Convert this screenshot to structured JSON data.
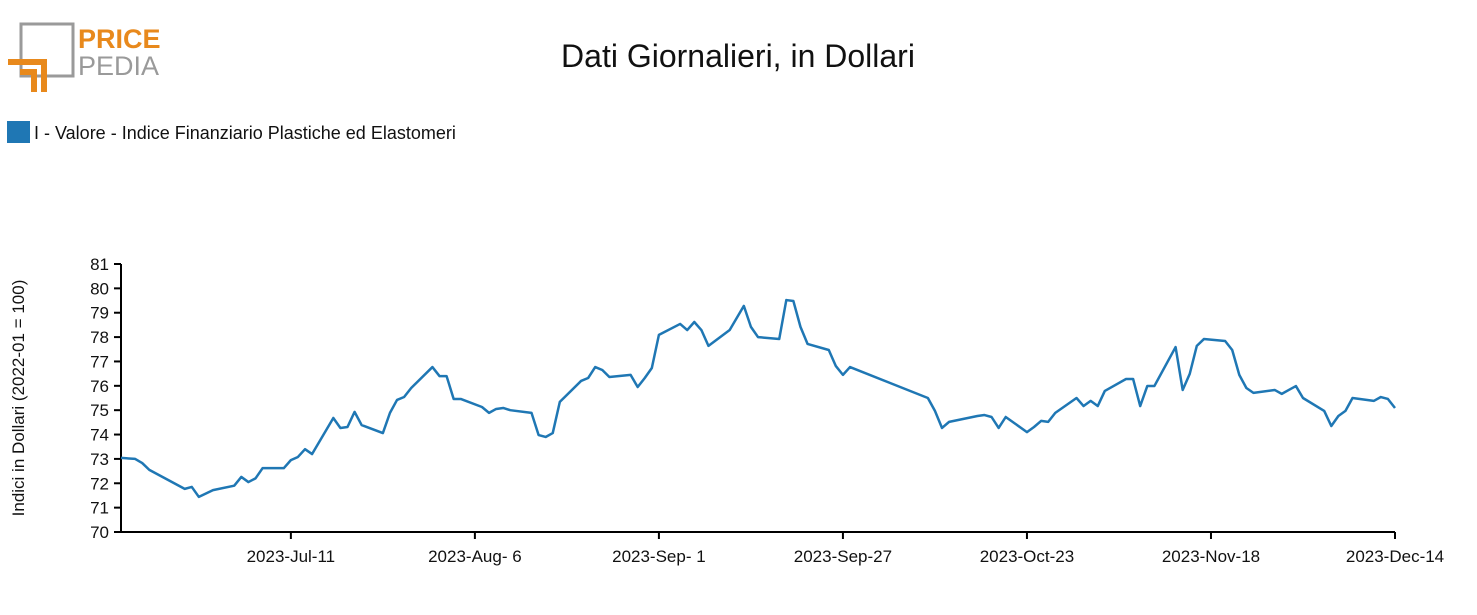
{
  "logo": {
    "top": "PRICE",
    "bottom": "PEDIA"
  },
  "chart_data": {
    "type": "line",
    "title": "Dati Giornalieri, in Dollari",
    "y_label": "Indici in Dollari (2022-01 = 100)",
    "x": [
      "2023-06-17",
      "2023-06-19",
      "2023-06-20",
      "2023-06-21",
      "2023-06-26",
      "2023-06-27",
      "2023-06-28",
      "2023-06-30",
      "2023-07-03",
      "2023-07-04",
      "2023-07-05",
      "2023-07-06",
      "2023-07-07",
      "2023-07-10",
      "2023-07-11",
      "2023-07-12",
      "2023-07-13",
      "2023-07-14",
      "2023-07-17",
      "2023-07-18",
      "2023-07-19",
      "2023-07-20",
      "2023-07-21",
      "2023-07-24",
      "2023-07-25",
      "2023-07-26",
      "2023-07-27",
      "2023-07-28",
      "2023-07-31",
      "2023-08-01",
      "2023-08-02",
      "2023-08-03",
      "2023-08-04",
      "2023-08-07",
      "2023-08-08",
      "2023-08-09",
      "2023-08-10",
      "2023-08-11",
      "2023-08-14",
      "2023-08-15",
      "2023-08-16",
      "2023-08-17",
      "2023-08-18",
      "2023-08-21",
      "2023-08-22",
      "2023-08-23",
      "2023-08-24",
      "2023-08-25",
      "2023-08-28",
      "2023-08-29",
      "2023-08-30",
      "2023-08-31",
      "2023-09-01",
      "2023-09-04",
      "2023-09-05",
      "2023-09-06",
      "2023-09-07",
      "2023-09-08",
      "2023-09-11",
      "2023-09-13",
      "2023-09-14",
      "2023-09-15",
      "2023-09-18",
      "2023-09-19",
      "2023-09-20",
      "2023-09-21",
      "2023-09-22",
      "2023-09-25",
      "2023-09-26",
      "2023-09-27",
      "2023-09-28",
      "2023-10-09",
      "2023-10-10",
      "2023-10-11",
      "2023-10-12",
      "2023-10-16",
      "2023-10-17",
      "2023-10-18",
      "2023-10-19",
      "2023-10-20",
      "2023-10-23",
      "2023-10-24",
      "2023-10-25",
      "2023-10-26",
      "2023-10-27",
      "2023-10-30",
      "2023-10-31",
      "2023-11-01",
      "2023-11-02",
      "2023-11-03",
      "2023-11-06",
      "2023-11-07",
      "2023-11-08",
      "2023-11-09",
      "2023-11-10",
      "2023-11-13",
      "2023-11-14",
      "2023-11-15",
      "2023-11-16",
      "2023-11-17",
      "2023-11-20",
      "2023-11-21",
      "2023-11-22",
      "2023-11-23",
      "2023-11-24",
      "2023-11-27",
      "2023-11-28",
      "2023-11-29",
      "2023-11-30",
      "2023-12-01",
      "2023-12-04",
      "2023-12-05",
      "2023-12-06",
      "2023-12-07",
      "2023-12-08",
      "2023-12-11",
      "2023-12-12",
      "2023-12-13",
      "2023-12-14"
    ],
    "series": [
      {
        "name": "I - Valore - Indice Finanziario Plastiche ed Elastomeri",
        "color": "#1f77b4",
        "values": [
          73.04,
          73.0,
          72.83,
          72.55,
          71.77,
          71.85,
          71.44,
          71.72,
          71.9,
          72.26,
          72.05,
          72.2,
          72.62,
          72.62,
          72.95,
          73.08,
          73.4,
          73.2,
          74.68,
          74.27,
          74.31,
          74.93,
          74.39,
          74.06,
          74.89,
          75.42,
          75.54,
          75.91,
          76.77,
          76.4,
          76.4,
          75.46,
          75.46,
          75.13,
          74.89,
          75.05,
          75.09,
          75.0,
          74.89,
          73.98,
          73.9,
          74.06,
          75.34,
          76.2,
          76.32,
          76.77,
          76.65,
          76.36,
          76.45,
          75.95,
          76.32,
          76.73,
          78.09,
          78.54,
          78.29,
          78.62,
          78.29,
          77.64,
          78.29,
          79.28,
          78.42,
          78.0,
          77.92,
          79.52,
          79.48,
          78.42,
          77.72,
          77.47,
          76.81,
          76.45,
          76.77,
          75.5,
          74.97,
          74.27,
          74.52,
          74.76,
          74.8,
          74.72,
          74.27,
          74.72,
          74.1,
          74.31,
          74.56,
          74.52,
          74.89,
          75.5,
          75.17,
          75.38,
          75.17,
          75.79,
          76.28,
          76.28,
          75.17,
          75.99,
          75.99,
          77.59,
          75.83,
          76.49,
          77.64,
          77.92,
          77.84,
          77.47,
          76.45,
          75.91,
          75.71,
          75.83,
          75.67,
          75.83,
          75.99,
          75.5,
          74.97,
          74.35,
          74.76,
          74.97,
          75.5,
          75.38,
          75.54,
          75.46,
          75.09
        ]
      }
    ],
    "xlim": [
      "2023-06-17",
      "2023-12-14"
    ],
    "xticks": [
      {
        "value": "2023-07-11",
        "label": "2023-Jul-11"
      },
      {
        "value": "2023-08-06",
        "label": "2023-Aug- 6"
      },
      {
        "value": "2023-09-01",
        "label": "2023-Sep- 1"
      },
      {
        "value": "2023-09-27",
        "label": "2023-Sep-27"
      },
      {
        "value": "2023-10-23",
        "label": "2023-Oct-23"
      },
      {
        "value": "2023-11-18",
        "label": "2023-Nov-18"
      },
      {
        "value": "2023-12-14",
        "label": "2023-Dec-14"
      }
    ],
    "ylim": [
      70,
      81
    ],
    "yticks": [
      70,
      71,
      72,
      73,
      74,
      75,
      76,
      77,
      78,
      79,
      80,
      81
    ],
    "legend": "top-left"
  }
}
